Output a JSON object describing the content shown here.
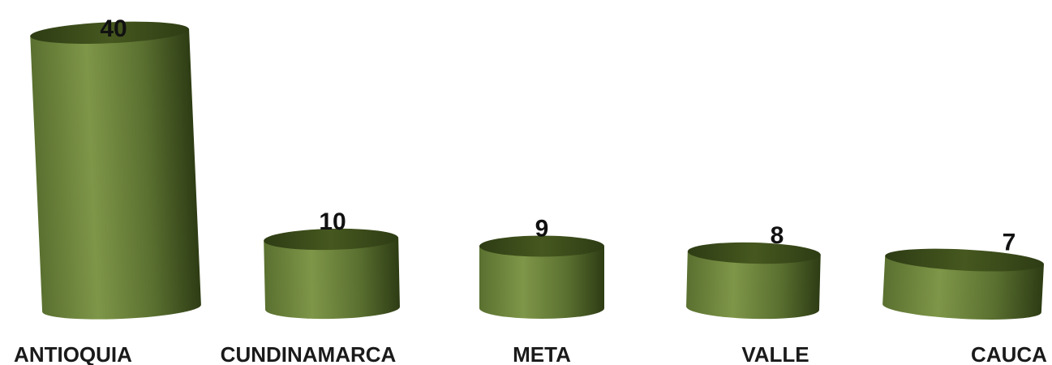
{
  "chart_data": {
    "type": "bar",
    "categories": [
      "ANTIOQUIA",
      "CUNDINAMARCA",
      "META",
      "VALLE",
      "CAUCA"
    ],
    "values": [
      40,
      10,
      9,
      8,
      7
    ],
    "title": "",
    "xlabel": "",
    "ylabel": "",
    "ylim": [
      0,
      40
    ],
    "grid": false,
    "legend": "none",
    "bar_style": "3d-cylinder",
    "colors": {
      "bar_light": "#7e9648",
      "bar_mid": "#5a7030",
      "bar_dark": "#2e3c14",
      "bar_top": "#46581f",
      "text": "#111111"
    }
  }
}
